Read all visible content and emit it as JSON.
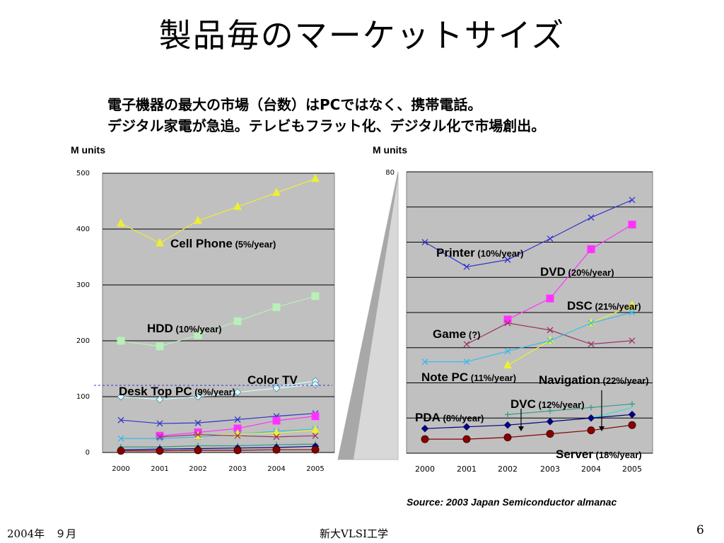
{
  "slide": {
    "title": "製品毎のマーケットサイズ",
    "subtitle_line1": "電子機器の最大の市場（台数）はPCではなく、携帯電話。",
    "subtitle_line2": "デジタル家電が急追。テレビもフラット化、デジタル化で市場創出。",
    "footer_date": "2004年　９月",
    "footer_org": "新大VLSI工学",
    "page_number": "6",
    "source": "Source: 2003 Japan Semiconductor almanac"
  },
  "chart_data": [
    {
      "type": "line",
      "ylabel": "M units",
      "ylim": [
        0,
        500
      ],
      "yticks": [
        "0",
        "100",
        "200",
        "300",
        "400",
        "500"
      ],
      "x": [
        "2000",
        "2001",
        "2002",
        "2003",
        "2004",
        "2005"
      ],
      "grid": true,
      "series": [
        {
          "name": "Cell Phone",
          "rate": "(5%/year)",
          "values": [
            410,
            375,
            415,
            440,
            465,
            490
          ],
          "color": "#eeee33",
          "marker": "triangle"
        },
        {
          "name": "HDD",
          "rate": "(10%/year)",
          "values": [
            200,
            190,
            210,
            235,
            260,
            280
          ],
          "color": "#b8f0b8",
          "marker": "square"
        },
        {
          "name": "Color TV",
          "rate": "",
          "values": [
            null,
            null,
            null,
            null,
            118,
            128
          ],
          "color": "#ccffff",
          "marker": "diamond"
        },
        {
          "name": "Desk Top PC",
          "rate": "(9%/year)",
          "values": [
            100,
            95,
            100,
            108,
            115,
            122
          ],
          "color": "#ccffff",
          "marker": "diamond"
        },
        {
          "name": "",
          "rate": "",
          "values": [
            58,
            52,
            53,
            59,
            65,
            70
          ],
          "color": "#3333cc",
          "marker": "x"
        },
        {
          "name": "",
          "rate": "",
          "values": [
            null,
            30,
            36,
            43,
            57,
            65
          ],
          "color": "#ff33ff",
          "marker": "square"
        },
        {
          "name": "",
          "rate": "",
          "values": [
            25,
            25,
            28,
            33,
            38,
            42
          ],
          "color": "#33bbee",
          "marker": "x"
        },
        {
          "name": "",
          "rate": "",
          "values": [
            null,
            null,
            30,
            33,
            35,
            40
          ],
          "color": "#eeee33",
          "marker": "triangle"
        },
        {
          "name": "",
          "rate": "",
          "values": [
            null,
            28,
            32,
            30,
            28,
            30
          ],
          "color": "#993366",
          "marker": "x"
        },
        {
          "name": "",
          "rate": "",
          "values": [
            10,
            10,
            12,
            12,
            14,
            15
          ],
          "color": "#339988",
          "marker": "plus"
        },
        {
          "name": "",
          "rate": "",
          "values": [
            5,
            6,
            7,
            8,
            9,
            11
          ],
          "color": "#000080",
          "marker": "diamond"
        },
        {
          "name": "",
          "rate": "",
          "values": [
            3,
            3,
            4,
            4,
            5,
            5
          ],
          "color": "#880000",
          "marker": "circle"
        }
      ]
    },
    {
      "type": "line",
      "ylabel": "M units",
      "ylim": [
        0,
        80
      ],
      "yticks": [
        "80"
      ],
      "x": [
        "2000",
        "2001",
        "2002",
        "2003",
        "2004",
        "2005"
      ],
      "grid": true,
      "series": [
        {
          "name": "Printer",
          "rate": "(10%/year)",
          "values": [
            60,
            53,
            55,
            61,
            67,
            72
          ],
          "color": "#3333cc",
          "marker": "x"
        },
        {
          "name": "DVD",
          "rate": "(20%/year)",
          "values": [
            null,
            null,
            38,
            44,
            58,
            65
          ],
          "color": "#ff33ff",
          "marker": "square"
        },
        {
          "name": "DSC",
          "rate": "(21%/year)",
          "values": [
            null,
            null,
            25,
            32,
            37,
            42
          ],
          "color": "#eeee33",
          "marker": "triangle"
        },
        {
          "name": "Game",
          "rate": "(?)",
          "values": [
            null,
            31,
            37,
            35,
            31,
            32
          ],
          "color": "#993366",
          "marker": "x"
        },
        {
          "name": "Note PC",
          "rate": "(11%/year)",
          "values": [
            26,
            26,
            29,
            32,
            37,
            40
          ],
          "color": "#33bbee",
          "marker": "x"
        },
        {
          "name": "Navigation",
          "rate": "(22%/year)",
          "values": [
            null,
            null,
            null,
            null,
            10,
            13
          ],
          "color": "#33dddd",
          "marker": "none"
        },
        {
          "name": "DVC",
          "rate": "(12%/year)",
          "values": [
            null,
            null,
            11,
            12,
            13,
            14
          ],
          "color": "#339988",
          "marker": "plus"
        },
        {
          "name": "PDA",
          "rate": "(8%/year)",
          "values": [
            7,
            7.5,
            8,
            9,
            10,
            11
          ],
          "color": "#000080",
          "marker": "diamond"
        },
        {
          "name": "Server",
          "rate": "(18%/year)",
          "values": [
            4,
            4,
            4.5,
            5.5,
            6.5,
            8
          ],
          "color": "#880000",
          "marker": "circle"
        }
      ]
    }
  ]
}
